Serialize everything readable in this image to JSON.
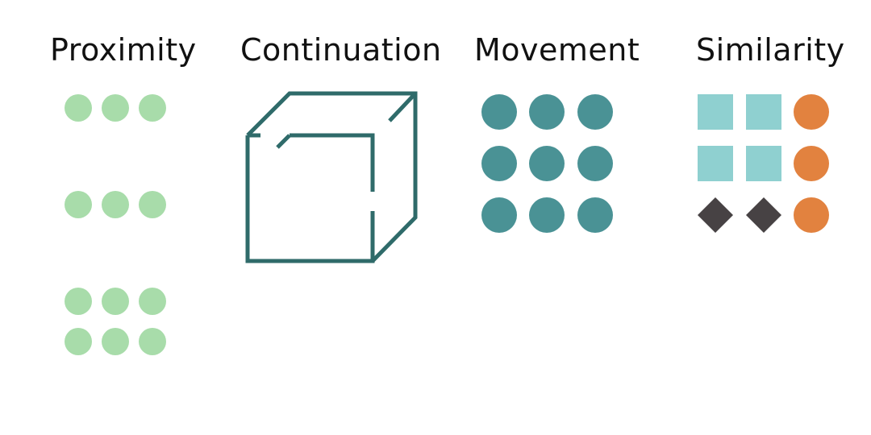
{
  "sections": [
    {
      "title": "Proximity"
    },
    {
      "title": "Continuation"
    },
    {
      "title": "Movement"
    },
    {
      "title": "Similarity"
    }
  ],
  "colors": {
    "proximity_dot": "#a8dcaa",
    "cube_stroke": "#2f6b6a",
    "movement_dot": "#4a9295",
    "similarity_square": "#8fd0d0",
    "similarity_circle": "#e2823f",
    "similarity_diamond": "#474244"
  }
}
